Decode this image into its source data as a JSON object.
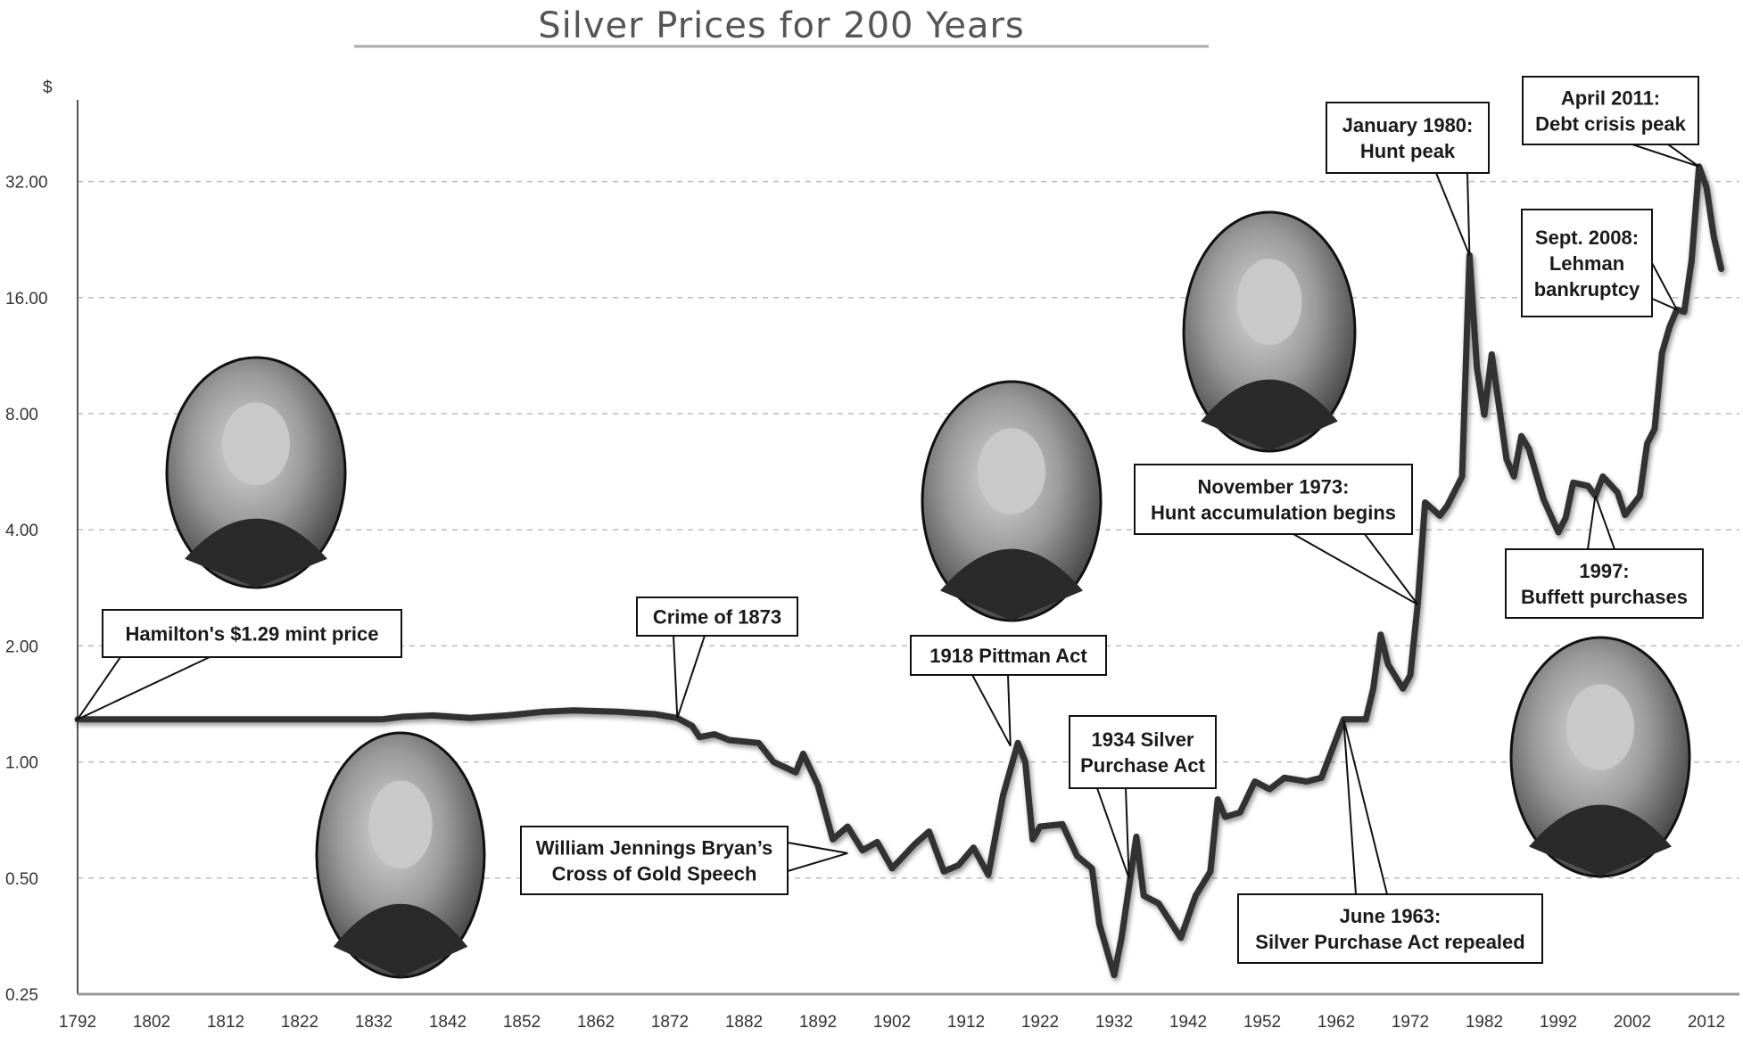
{
  "chart_data": {
    "type": "line",
    "title": "Silver Prices for 200 Years",
    "ylabel": "$",
    "xlabel": "",
    "yscale": "log2",
    "ylim": [
      0.25,
      45
    ],
    "xlim": [
      1792,
      2015
    ],
    "grid": true,
    "y_ticks": [
      "0.25",
      "0.50",
      "1.00",
      "2.00",
      "4.00",
      "8.00",
      "16.00",
      "32.00"
    ],
    "y_tick_values": [
      0.25,
      0.5,
      1,
      2,
      4,
      8,
      16,
      32
    ],
    "x_ticks": [
      "1792",
      "1802",
      "1812",
      "1822",
      "1832",
      "1842",
      "1852",
      "1862",
      "1872",
      "1882",
      "1892",
      "1902",
      "1912",
      "1922",
      "1932",
      "1942",
      "1952",
      "1962",
      "1972",
      "1982",
      "1992",
      "2002",
      "2012"
    ],
    "line_color": "#333333",
    "series": [
      {
        "x": [
          1792,
          1833,
          1836,
          1840,
          1845,
          1850,
          1855,
          1859,
          1865,
          1870,
          1873,
          1875,
          1876,
          1878,
          1880,
          1884,
          1886,
          1889,
          1890,
          1892,
          1894,
          1896,
          1898,
          1900,
          1902,
          1905,
          1907,
          1909,
          1911,
          1913,
          1915,
          1917,
          1919,
          1920,
          1921,
          1922,
          1925,
          1927,
          1929,
          1930,
          1932,
          1933,
          1935,
          1936,
          1938,
          1941,
          1943,
          1945,
          1946,
          1947,
          1949,
          1951,
          1953,
          1955,
          1958,
          1960,
          1963,
          1966,
          1967,
          1968,
          1969,
          1971,
          1972,
          1973,
          1974,
          1976,
          1977,
          1979,
          1980,
          1981,
          1982,
          1983,
          1985,
          1986,
          1987,
          1988,
          1990,
          1992,
          1993,
          1994,
          1996,
          1997,
          1998,
          2000,
          2001,
          2003,
          2004,
          2005,
          2006,
          2007,
          2008,
          2009,
          2010,
          2011,
          2012,
          2013,
          2014
        ],
        "values": [
          1.29,
          1.29,
          1.31,
          1.32,
          1.3,
          1.32,
          1.35,
          1.36,
          1.35,
          1.33,
          1.3,
          1.24,
          1.16,
          1.18,
          1.14,
          1.12,
          1.0,
          0.94,
          1.05,
          0.87,
          0.63,
          0.68,
          0.59,
          0.62,
          0.53,
          0.61,
          0.66,
          0.52,
          0.54,
          0.6,
          0.51,
          0.82,
          1.12,
          1.0,
          0.63,
          0.68,
          0.69,
          0.57,
          0.53,
          0.38,
          0.28,
          0.35,
          0.64,
          0.45,
          0.43,
          0.35,
          0.45,
          0.52,
          0.8,
          0.72,
          0.74,
          0.89,
          0.85,
          0.91,
          0.89,
          0.91,
          1.29,
          1.29,
          1.55,
          2.14,
          1.79,
          1.55,
          1.68,
          2.56,
          4.71,
          4.35,
          4.62,
          5.5,
          20.6,
          10.5,
          7.95,
          11.4,
          6.1,
          5.5,
          7.0,
          6.5,
          4.8,
          3.94,
          4.3,
          5.3,
          5.2,
          4.9,
          5.5,
          5.0,
          4.37,
          4.9,
          6.7,
          7.3,
          11.5,
          13.4,
          14.9,
          14.7,
          20.0,
          35.0,
          31.0,
          23.0,
          19.0
        ]
      }
    ],
    "annotations": [
      {
        "lines": [
          "Hamilton's $1.29 mint price"
        ],
        "year": 1792,
        "value": 1.29
      },
      {
        "lines": [
          "Crime of 1873"
        ],
        "year": 1873,
        "value": 1.3
      },
      {
        "lines": [
          "1918 Pittman Act"
        ],
        "year": 1918,
        "value": 1.1
      },
      {
        "lines": [
          "1934 Silver",
          "Purchase Act"
        ],
        "year": 1934,
        "value": 0.5
      },
      {
        "lines": [
          "William Jennings Bryan’s",
          "Cross of Gold Speech"
        ],
        "year": 1896,
        "value": 0.58
      },
      {
        "lines": [
          "November 1973:",
          "Hunt accumulation begins"
        ],
        "year": 1973,
        "value": 2.56
      },
      {
        "lines": [
          "June 1963:",
          "Silver Purchase Act repealed"
        ],
        "year": 1963,
        "value": 1.29
      },
      {
        "lines": [
          "January 1980:",
          "Hunt peak"
        ],
        "year": 1980,
        "value": 20.6
      },
      {
        "lines": [
          "April 2011:",
          "Debt crisis peak"
        ],
        "year": 2011,
        "value": 35.0
      },
      {
        "lines": [
          "Sept. 2008:",
          "Lehman",
          "bankruptcy"
        ],
        "year": 2008,
        "value": 14.9
      },
      {
        "lines": [
          "1997:",
          "Buffett purchases"
        ],
        "year": 1997,
        "value": 4.9
      }
    ],
    "portraits": [
      "hamilton-portrait",
      "bryan-portrait",
      "pittman-portrait",
      "hunt-portrait",
      "buffett-portrait"
    ]
  }
}
